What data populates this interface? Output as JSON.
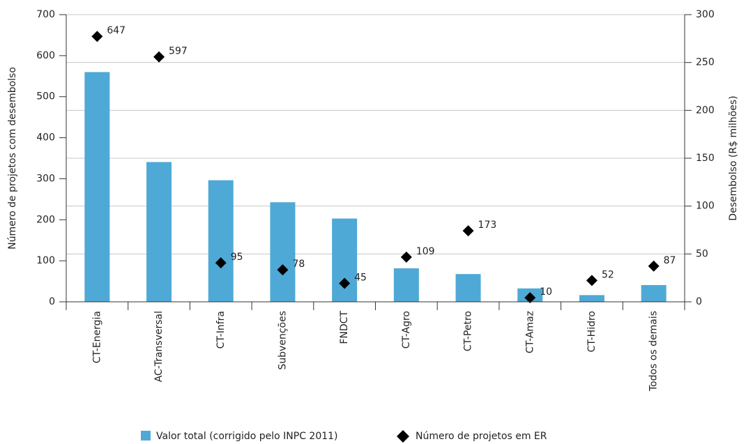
{
  "chart_data": {
    "type": "bar",
    "categories": [
      "CT-Energia",
      "AC-Transversal",
      "CT-Infra",
      "Subvenções",
      "FNDCT",
      "CT-Agro",
      "CT-Petro",
      "CT-Amaz",
      "CT-Hidro",
      "Todos os demais"
    ],
    "series": [
      {
        "name": "Valor total (corrigido pelo INPC 2011)",
        "type": "bar",
        "axis": "y2",
        "color": "#4fa9d6",
        "values": [
          240,
          146,
          127,
          104,
          87,
          35,
          29,
          14,
          7,
          17.5
        ]
      },
      {
        "name": "Número de projetos em ER",
        "type": "scatter",
        "axis": "y",
        "color": "#000000",
        "values": [
          647,
          597,
          95,
          78,
          45,
          109,
          173,
          10,
          52,
          87
        ]
      }
    ],
    "ylabel": "Número de projetos com desembolso",
    "y2label": "Desembolso (R$ milhões)",
    "ylim": [
      0,
      700
    ],
    "yticks": [
      0,
      100,
      200,
      300,
      400,
      500,
      600,
      700
    ],
    "y2lim": [
      0,
      300
    ],
    "y2ticks": [
      0,
      50,
      100,
      150,
      200,
      250,
      300
    ],
    "grid": true,
    "legend": "bottom"
  }
}
